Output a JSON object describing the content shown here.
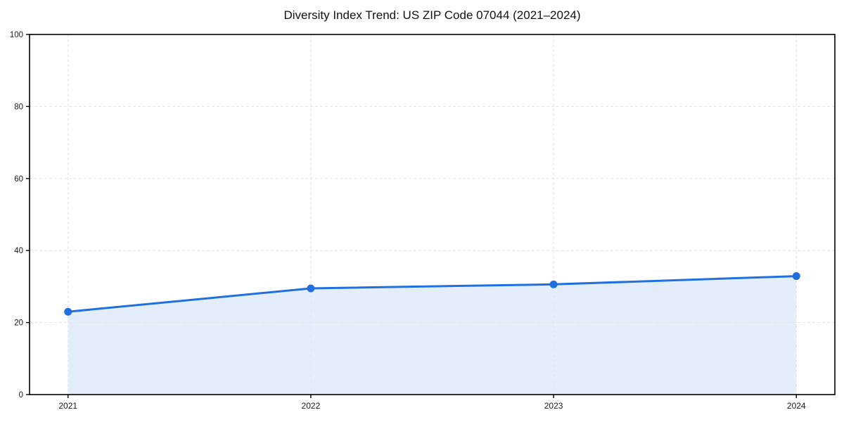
{
  "chart_data": {
    "type": "area",
    "title": "Diversity Index Trend: US ZIP Code 07044 (2021–2024)",
    "categories": [
      "2021",
      "2022",
      "2023",
      "2024"
    ],
    "series": [
      {
        "name": "Diversity Index",
        "values": [
          23.0,
          29.5,
          30.6,
          32.9
        ]
      }
    ],
    "xlabel": "",
    "ylabel": "",
    "ylim": [
      0,
      100
    ],
    "yticks": [
      0,
      20,
      40,
      60,
      80,
      100
    ],
    "grid": true,
    "legend": "none",
    "colors": {
      "line": "#2170e0",
      "marker": "#2170e0",
      "fill": "rgba(33, 112, 224, 0.12)",
      "grid": "#e3e3e3",
      "spine": "#000000",
      "tick_text": "#1a1a1a"
    }
  }
}
